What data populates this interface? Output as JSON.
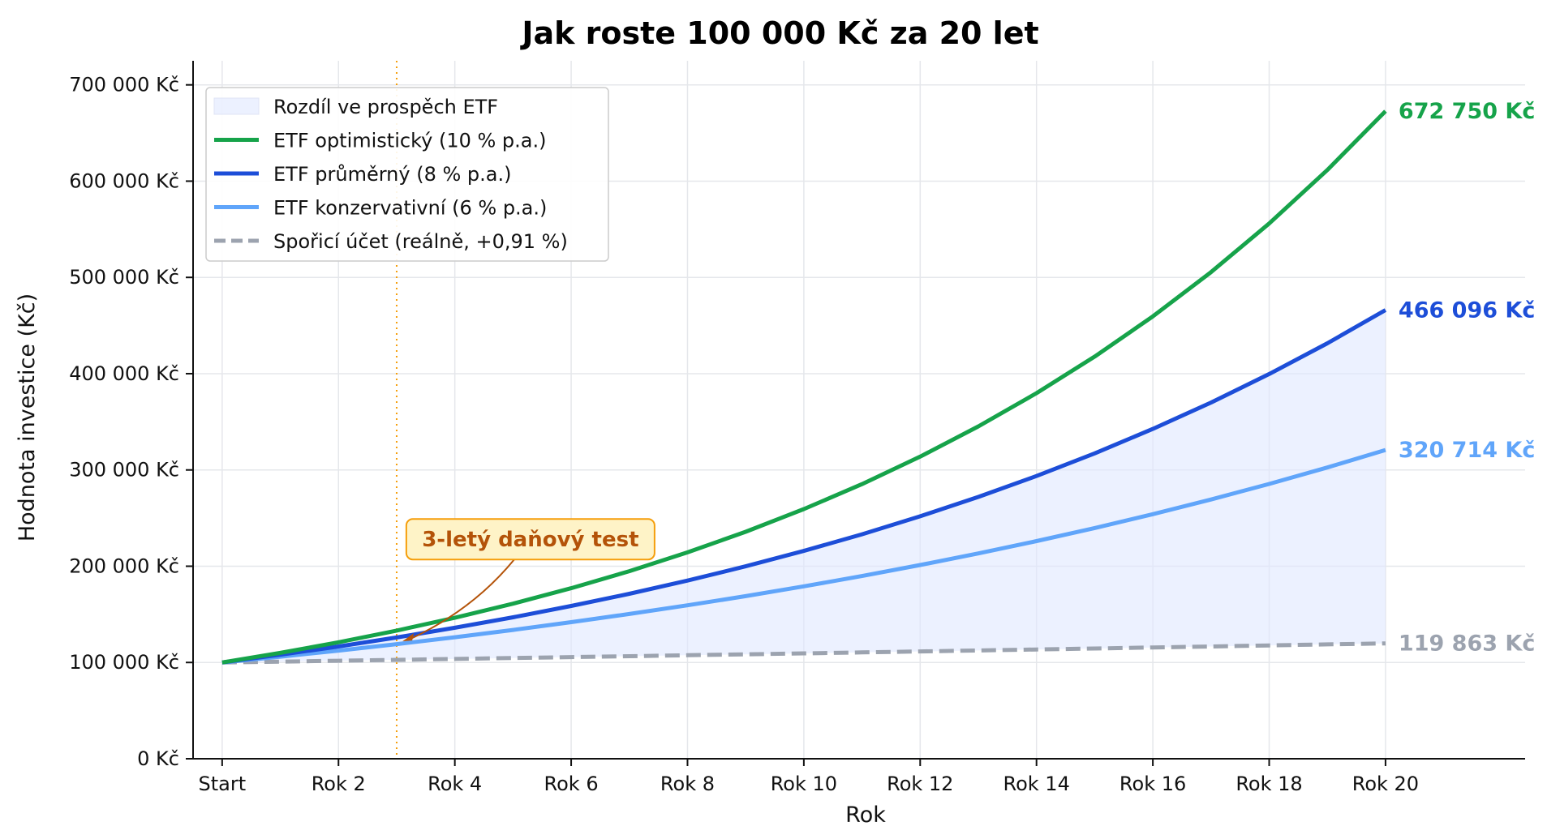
{
  "chart_data": {
    "type": "line",
    "title": "Jak roste 100 000 Kč za 20 let",
    "xlabel": "Rok",
    "ylabel": "Hodnota investice (Kč)",
    "x": [
      0,
      1,
      2,
      3,
      4,
      5,
      6,
      7,
      8,
      9,
      10,
      11,
      12,
      13,
      14,
      15,
      16,
      17,
      18,
      19,
      20
    ],
    "xticks": [
      {
        "x": 0,
        "label": "Start"
      },
      {
        "x": 2,
        "label": "Rok 2"
      },
      {
        "x": 4,
        "label": "Rok 4"
      },
      {
        "x": 6,
        "label": "Rok 6"
      },
      {
        "x": 8,
        "label": "Rok 8"
      },
      {
        "x": 10,
        "label": "Rok 10"
      },
      {
        "x": 12,
        "label": "Rok 12"
      },
      {
        "x": 14,
        "label": "Rok 14"
      },
      {
        "x": 16,
        "label": "Rok 16"
      },
      {
        "x": 18,
        "label": "Rok 18"
      },
      {
        "x": 20,
        "label": "Rok 20"
      }
    ],
    "yticks": [
      {
        "y": 0,
        "label": "0 Kč"
      },
      {
        "y": 100000,
        "label": "100 000 Kč"
      },
      {
        "y": 200000,
        "label": "200 000 Kč"
      },
      {
        "y": 300000,
        "label": "300 000 Kč"
      },
      {
        "y": 400000,
        "label": "400 000 Kč"
      },
      {
        "y": 500000,
        "label": "500 000 Kč"
      },
      {
        "y": 600000,
        "label": "600 000 Kč"
      },
      {
        "y": 700000,
        "label": "700 000 Kč"
      }
    ],
    "xlim": [
      -0.5,
      22.4
    ],
    "ylim": [
      0,
      725000
    ],
    "grid": true,
    "legend_position": "top-left",
    "series": [
      {
        "name": "ETF optimistický (10 % p.a.)",
        "color": "#16a34a",
        "style": "solid",
        "values": [
          100000,
          110000,
          121000,
          133100,
          146410,
          161051,
          177156,
          194872,
          214359,
          235795,
          259374,
          285312,
          313843,
          345227,
          379750,
          417725,
          459497,
          505447,
          555992,
          611591,
          672750
        ],
        "end_label": "672 750 Kč"
      },
      {
        "name": "ETF průměrný (8 % p.a.)",
        "color": "#1d4ed8",
        "style": "solid",
        "values": [
          100000,
          108000,
          116640,
          125971,
          136049,
          146933,
          158687,
          171382,
          185093,
          199900,
          215892,
          233164,
          251817,
          271962,
          293719,
          317217,
          342594,
          370002,
          399602,
          431570,
          466096
        ],
        "end_label": "466 096 Kč"
      },
      {
        "name": "ETF konzervativní (6 % p.a.)",
        "color": "#60a5fa",
        "style": "solid",
        "values": [
          100000,
          106000,
          112360,
          119102,
          126248,
          133823,
          141852,
          150363,
          159385,
          168948,
          179085,
          189830,
          201220,
          213293,
          226090,
          239656,
          254035,
          269277,
          285434,
          302560,
          320714
        ],
        "end_label": "320 714 Kč"
      },
      {
        "name": "Spořicí účet (reálně, +0,91 %)",
        "color": "#9ca3af",
        "style": "dashed",
        "values": [
          100000,
          100910,
          101828,
          102755,
          103690,
          104634,
          105586,
          106547,
          107516,
          108495,
          109482,
          110478,
          111484,
          112498,
          113522,
          114555,
          115597,
          116649,
          117711,
          118782,
          119863
        ],
        "end_label": "119 863 Kč"
      }
    ],
    "fill": {
      "name": "Rozdíl ve prospěch ETF",
      "color": "#e0e7ff",
      "between": [
        "ETF průměrný (8 % p.a.)",
        "Spořicí účet (reálně, +0,91 %)"
      ]
    },
    "vline": {
      "x": 3,
      "color": "#f59e0b",
      "style": "dotted"
    },
    "annotation": {
      "text": "3-letý daňový test",
      "point": {
        "x": 3.1,
        "y": 122000
      },
      "text_anchor": {
        "x": 5.3,
        "y": 228000
      },
      "color": "#b45309",
      "box_fill": "#fef3c7",
      "box_stroke": "#f59e0b"
    }
  }
}
